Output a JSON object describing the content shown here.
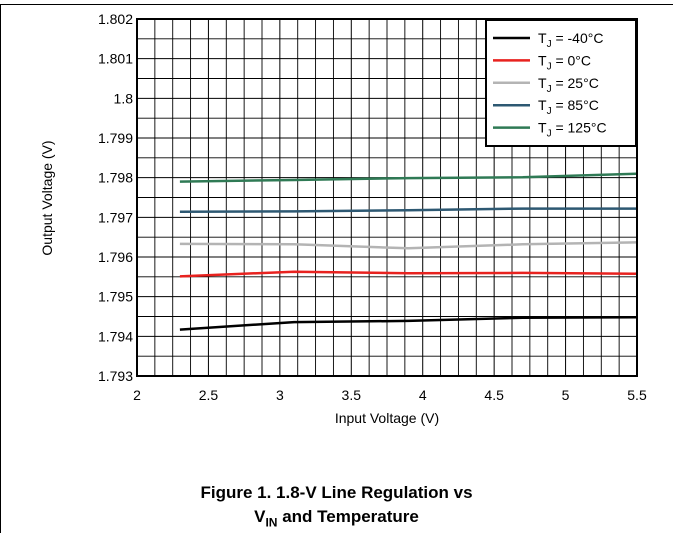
{
  "chart_data": {
    "type": "line",
    "xlabel": "Input Voltage (V)",
    "ylabel": "Output Voltage (V)",
    "xlim": [
      2,
      5.5
    ],
    "ylim": [
      1.793,
      1.802
    ],
    "xticks": [
      "2",
      "2.5",
      "3",
      "3.5",
      "4",
      "4.5",
      "5",
      "5.5"
    ],
    "yticks": [
      "1.793",
      "1.794",
      "1.795",
      "1.796",
      "1.797",
      "1.798",
      "1.799",
      "1.8",
      "1.801",
      "1.802"
    ],
    "grid": true,
    "legend_position": "top-right",
    "series": [
      {
        "name": "T_J = -40°C",
        "legend_main": "T",
        "legend_sub": "J",
        "legend_rest": " = -40°C",
        "color": "#000000",
        "x": [
          2.3,
          3.1,
          3.9,
          4.7,
          5.5
        ],
        "y": [
          1.79417,
          1.79436,
          1.79439,
          1.79447,
          1.79448
        ]
      },
      {
        "name": "T_J = 0°C",
        "legend_main": "T",
        "legend_sub": "J",
        "legend_rest": " = 0°C",
        "color": "#e8221f",
        "x": [
          2.3,
          3.1,
          3.9,
          4.7,
          5.5
        ],
        "y": [
          1.79551,
          1.79563,
          1.79559,
          1.7956,
          1.79558
        ]
      },
      {
        "name": "T_J = 25°C",
        "legend_main": "T",
        "legend_sub": "J",
        "legend_rest": " = 25°C",
        "color": "#b4b4b4",
        "x": [
          2.3,
          3.1,
          3.9,
          4.7,
          5.5
        ],
        "y": [
          1.79633,
          1.79632,
          1.79622,
          1.79632,
          1.79637
        ]
      },
      {
        "name": "T_J = 85°C",
        "legend_main": "T",
        "legend_sub": "J",
        "legend_rest": " = 85°C",
        "color": "#2d5872",
        "x": [
          2.3,
          3.1,
          3.9,
          4.7,
          5.5
        ],
        "y": [
          1.79714,
          1.79715,
          1.79718,
          1.79722,
          1.79722
        ]
      },
      {
        "name": "T_J = 125°C",
        "legend_main": "T",
        "legend_sub": "J",
        "legend_rest": " = 125°C",
        "color": "#2f7a55",
        "x": [
          2.3,
          3.1,
          3.9,
          4.7,
          5.5
        ],
        "y": [
          1.7979,
          1.79794,
          1.79799,
          1.79801,
          1.7981
        ]
      }
    ]
  },
  "caption": {
    "line1": "Figure 1. 1.8-V Line Regulation vs",
    "line2_main": "V",
    "line2_sub": "IN",
    "line2_rest": " and Temperature"
  }
}
